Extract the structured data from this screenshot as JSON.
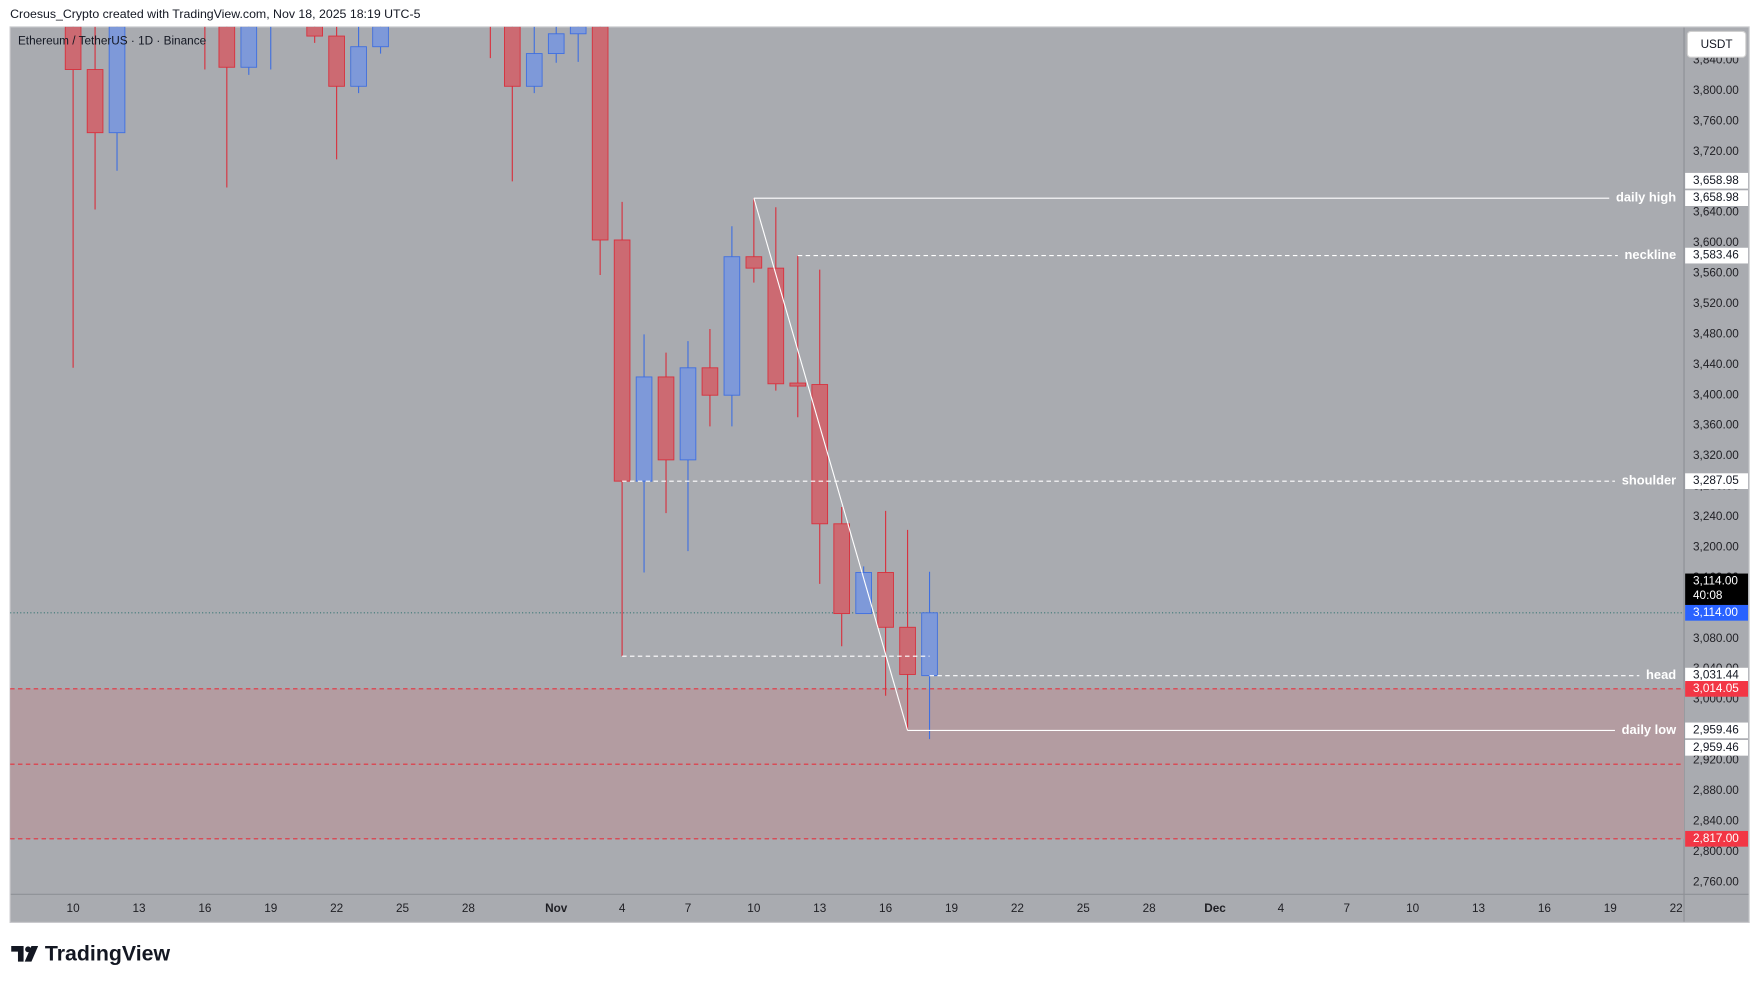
{
  "header": {
    "credit": "Croesus_Crypto created with TradingView.com, Nov 18, 2025 18:19 UTC-5",
    "logo": "TradingView"
  },
  "chart_data": {
    "type": "candlestick",
    "symbol": "Ethereum / TetherUS · 1D · Binance",
    "currency": "USDT",
    "background": "#a9abb0",
    "up_color": "#7e99d9",
    "up_border": "#3f6fe0",
    "down_color": "#cc6a72",
    "down_border": "#d8303d",
    "categories": [
      null,
      null,
      "10",
      null,
      null,
      "13",
      null,
      null,
      "16",
      null,
      null,
      "19",
      null,
      null,
      "22",
      null,
      null,
      "25",
      null,
      null,
      "28",
      null,
      null,
      null,
      "Nov",
      null,
      null,
      "4",
      null,
      null,
      "7",
      null,
      null,
      "10",
      null,
      null,
      "13",
      null,
      null,
      "16",
      null,
      null,
      "19",
      null,
      null,
      "22",
      null,
      null,
      "25",
      null,
      null,
      "28",
      null,
      null,
      "Dec",
      null,
      null,
      "4",
      null,
      null,
      "7",
      null,
      null,
      "10",
      null,
      null,
      "13",
      null,
      null,
      "16",
      null,
      null,
      "19",
      null,
      null,
      "22"
    ],
    "open": [
      null,
      null,
      3890,
      3828,
      3745,
      null,
      null,
      null,
      3950,
      3890,
      3831,
      3900,
      null,
      3890,
      3872,
      3806,
      3858,
      null,
      null,
      null,
      null,
      3950,
      3900,
      3806,
      3849,
      3875,
      3890,
      3604,
      3287.05,
      3424,
      3315,
      3436,
      3400,
      3582,
      3567,
      3416,
      3414,
      3231,
      3113,
      3167,
      3095,
      3031.44,
      null,
      null,
      null,
      null,
      null,
      null,
      null,
      null,
      null,
      null,
      null,
      null,
      null,
      null,
      null,
      null,
      null,
      null,
      null,
      null,
      null,
      null,
      null,
      null,
      null,
      null,
      null,
      null,
      null,
      null,
      null,
      null,
      null,
      null
    ],
    "high": [
      null,
      null,
      3900,
      3890,
      3900,
      null,
      null,
      null,
      3980,
      3920,
      3910,
      3960,
      null,
      3920,
      3890,
      3900,
      3920,
      null,
      null,
      null,
      null,
      3970,
      3930,
      3890,
      3890,
      3910,
      3920,
      3654,
      3480,
      3456,
      3471,
      3487,
      3622,
      3658.98,
      3647,
      3583.46,
      3565,
      3253,
      3175,
      3248,
      3223,
      3168,
      null,
      null,
      null,
      null,
      null,
      null,
      null,
      null,
      null,
      null,
      null,
      null,
      null,
      null,
      null,
      null,
      null,
      null,
      null,
      null,
      null,
      null,
      null,
      null,
      null,
      null,
      null,
      null,
      null,
      null,
      null,
      null,
      null,
      null
    ],
    "low": [
      null,
      null,
      3436,
      3644,
      3695,
      null,
      null,
      null,
      3828,
      3673,
      3821,
      3828,
      null,
      3863,
      3710,
      3797,
      3849,
      null,
      null,
      null,
      null,
      3843,
      3681,
      3797,
      3837,
      3838,
      3558,
      3057,
      3167,
      3245,
      3195,
      3359,
      3359,
      3548,
      3406,
      3371,
      3152,
      3070,
      3113,
      3005,
      2959.46,
      2948,
      null,
      null,
      null,
      null,
      null,
      null,
      null,
      null,
      null,
      null,
      null,
      null,
      null,
      null,
      null,
      null,
      null,
      null,
      null,
      null,
      null,
      null,
      null,
      null,
      null,
      null,
      null,
      null,
      null,
      null,
      null,
      null,
      null,
      null
    ],
    "close": [
      null,
      null,
      3828,
      3745,
      3890,
      null,
      null,
      null,
      3900,
      3831,
      3890,
      3940,
      null,
      3872,
      3806,
      3858,
      3900,
      null,
      null,
      null,
      null,
      3900,
      3806,
      3849,
      3875,
      3890,
      3604,
      3287.05,
      3424,
      3315,
      3436,
      3400,
      3582,
      3567,
      3415,
      3412,
      3231,
      3113,
      3167,
      3095,
      3033,
      3114,
      null,
      null,
      null,
      null,
      null,
      null,
      null,
      null,
      null,
      null,
      null,
      null,
      null,
      null,
      null,
      null,
      null,
      null,
      null,
      null,
      null,
      null,
      null,
      null,
      null,
      null,
      null,
      null,
      null,
      null,
      null,
      null,
      null,
      null
    ],
    "ylim": [
      2744,
      3884
    ],
    "yticks": [
      {
        "value": 2760,
        "label": "2,760.00"
      },
      {
        "value": 2800,
        "label": "2,800.00"
      },
      {
        "value": 2840,
        "label": "2,840.00"
      },
      {
        "value": 2880,
        "label": "2,880.00"
      },
      {
        "value": 2920,
        "label": "2,920.00"
      },
      {
        "value": 2960,
        "label": "2,960.00"
      },
      {
        "value": 3000,
        "label": "3,000.00"
      },
      {
        "value": 3040,
        "label": "3,040.00"
      },
      {
        "value": 3080,
        "label": "3,080.00"
      },
      {
        "value": 3120,
        "label": "3,120.00"
      },
      {
        "value": 3160,
        "label": "3,160.00"
      },
      {
        "value": 3200,
        "label": "3,200.00"
      },
      {
        "value": 3240,
        "label": "3,240.00"
      },
      {
        "value": 3280,
        "label": "3,280.00"
      },
      {
        "value": 3320,
        "label": "3,320.00"
      },
      {
        "value": 3360,
        "label": "3,360.00"
      },
      {
        "value": 3400,
        "label": "3,400.00"
      },
      {
        "value": 3440,
        "label": "3,440.00"
      },
      {
        "value": 3480,
        "label": "3,480.00"
      },
      {
        "value": 3520,
        "label": "3,520.00"
      },
      {
        "value": 3560,
        "label": "3,560.00"
      },
      {
        "value": 3600,
        "label": "3,600.00"
      },
      {
        "value": 3640,
        "label": "3,640.00"
      },
      {
        "value": 3680,
        "label": "3,680.00"
      },
      {
        "value": 3720,
        "label": "3,720.00"
      },
      {
        "value": 3760,
        "label": "3,760.00"
      },
      {
        "value": 3800,
        "label": "3,800.00"
      },
      {
        "value": 3840,
        "label": "3,840.00"
      }
    ],
    "zone": {
      "top": 3014.05,
      "mid": 2915,
      "bottom": 2817,
      "color": "#b39ca1",
      "line_color": "#e5323e"
    },
    "levels": [
      {
        "name": "daily high",
        "value": 3658.98,
        "labels": [
          "3,658.98",
          "3,658.98"
        ],
        "style": "solid"
      },
      {
        "name": "neckline",
        "value": 3583.46,
        "labels": [
          "3,583.46"
        ],
        "style": "dashed"
      },
      {
        "name": "shoulder",
        "value": 3287.05,
        "labels": [
          "3,287.05"
        ],
        "style": "dashed"
      },
      {
        "name": "head",
        "value": 3031.44,
        "labels": [
          "3,031.44"
        ],
        "style": "dashed"
      },
      {
        "name": "daily low",
        "value": 2959.46,
        "labels": [
          "2,959.46",
          "2,959.46"
        ],
        "style": "solid"
      },
      {
        "value": 3057,
        "style": "dashed"
      }
    ],
    "trend_line": true,
    "price_line": true,
    "price_tags": [
      {
        "value": 3114,
        "label": "3,114.00",
        "countdown": "40:08",
        "color": "#000000"
      },
      {
        "value": 3114,
        "label": "3,114.00",
        "color": "#2962ff"
      },
      {
        "value": 3014.05,
        "label": "3,014.05",
        "color": "#f23645"
      },
      {
        "value": 2817,
        "label": "2,817.00",
        "color": "#f23645"
      }
    ]
  }
}
